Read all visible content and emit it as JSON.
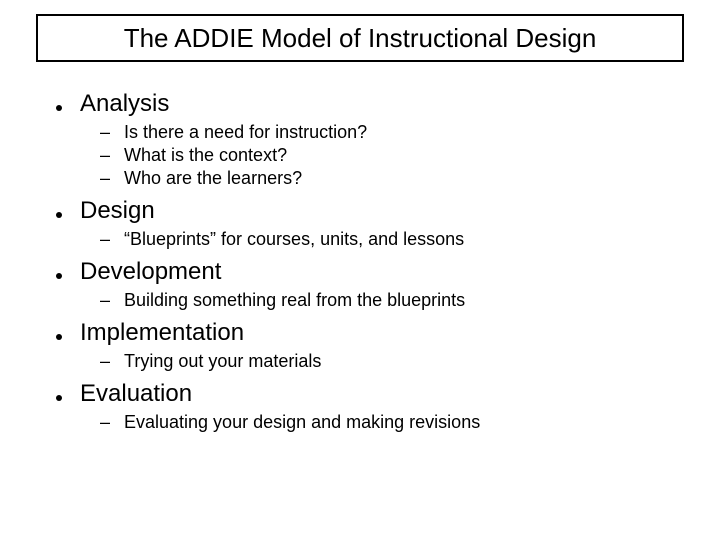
{
  "title": "The ADDIE Model of Instructional Design",
  "title_fontsize": 26,
  "title_box": {
    "border_color": "#000000",
    "border_width": 2,
    "bg_color": "#ffffff"
  },
  "background_color": "#ffffff",
  "text_color": "#000000",
  "bullet_fontsize": 24,
  "sub_fontsize": 18,
  "sections": [
    {
      "label": "Analysis",
      "items": [
        "Is there a need for instruction?",
        "What is the context?",
        "Who are the learners?"
      ]
    },
    {
      "label": "Design",
      "items": [
        "“Blueprints” for courses, units, and lessons"
      ]
    },
    {
      "label": "Development",
      "items": [
        "Building something real from the blueprints"
      ]
    },
    {
      "label": "Implementation",
      "items": [
        "Trying out your materials"
      ]
    },
    {
      "label": "Evaluation",
      "items": [
        "Evaluating your design and making revisions"
      ]
    }
  ]
}
